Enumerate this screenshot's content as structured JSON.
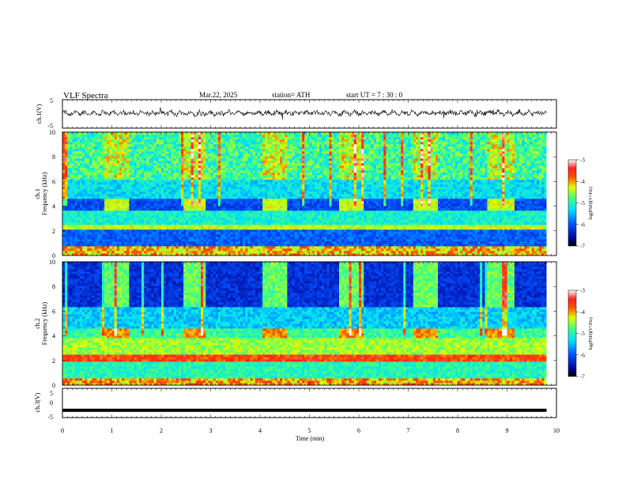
{
  "header": {
    "title": "VLF  Spectra",
    "date": "Mar.22, 2025",
    "station": "station= ATH",
    "start": "start  UT  =   7  : 30 : 0"
  },
  "chart_data": [
    {
      "type": "line",
      "panel": "ch1-waveform",
      "ylabel": "ch.1(V)",
      "ylim": [
        -5,
        5
      ],
      "yticks": [
        "5",
        "-5"
      ],
      "xlim": [
        0,
        10
      ],
      "series": [
        {
          "values_description_free": true,
          "x_range": [
            0,
            9.8
          ],
          "level": 0.3
        }
      ]
    },
    {
      "type": "heatmap",
      "panel": "ch1-spectrogram",
      "ylabel": "ch.1\nFrequency  (kHz)",
      "ylabel_lines": [
        "ch.1",
        "Frequency  (kHz)"
      ],
      "ylim": [
        0,
        10
      ],
      "yticks": [
        "0",
        "2",
        "4",
        "6",
        "8",
        "10"
      ],
      "xlim": [
        0,
        10
      ],
      "data_x_range": [
        0,
        9.8
      ],
      "colorbar": {
        "label": "log(PSD)(V²/Hz)",
        "range": [
          -7,
          -3
        ],
        "ticks": [
          "-3",
          "-4",
          "-5",
          "-6",
          "-7"
        ]
      },
      "bursts_min": [
        [
          0.85,
          1.3
        ],
        [
          2.45,
          2.9
        ],
        [
          4.05,
          4.5
        ],
        [
          5.6,
          6.1
        ],
        [
          7.1,
          7.6
        ],
        [
          8.6,
          9.1
        ]
      ]
    },
    {
      "type": "heatmap",
      "panel": "ch2-spectrogram",
      "ylabel_lines": [
        "ch.2",
        "Frequency  (kHz)"
      ],
      "ylim": [
        0,
        10
      ],
      "yticks": [
        "0",
        "2",
        "4",
        "6",
        "8",
        "10"
      ],
      "xlim": [
        0,
        10
      ],
      "data_x_range": [
        0,
        9.8
      ],
      "colorbar": {
        "label": "log(PSD)(V²/Hz)",
        "range": [
          -7,
          -3
        ],
        "ticks": [
          "-3",
          "-4",
          "-5",
          "-6",
          "-7"
        ]
      },
      "bursts_min": [
        [
          0.85,
          1.3
        ],
        [
          2.45,
          2.9
        ],
        [
          4.05,
          4.5
        ],
        [
          5.6,
          6.1
        ],
        [
          7.1,
          7.6
        ],
        [
          8.6,
          9.1
        ]
      ]
    },
    {
      "type": "line",
      "panel": "ch3-waveform",
      "ylabel": "ch.3(V)",
      "ylim": [
        -5,
        5
      ],
      "yticks": [
        "5",
        "0",
        "-5"
      ],
      "xlim": [
        0,
        10
      ],
      "series": [
        {
          "x_range": [
            0,
            9.8
          ],
          "level": -2.5
        }
      ]
    }
  ],
  "xaxis": {
    "label": "Time  (min)",
    "ticks": [
      "0",
      "1",
      "2",
      "3",
      "4",
      "5",
      "6",
      "7",
      "8",
      "9",
      "10"
    ]
  },
  "colors": {
    "jet_low": "#000080",
    "jet_mid": "#00ff00",
    "jet_high": "#ff0000",
    "top": "#ffffff"
  }
}
